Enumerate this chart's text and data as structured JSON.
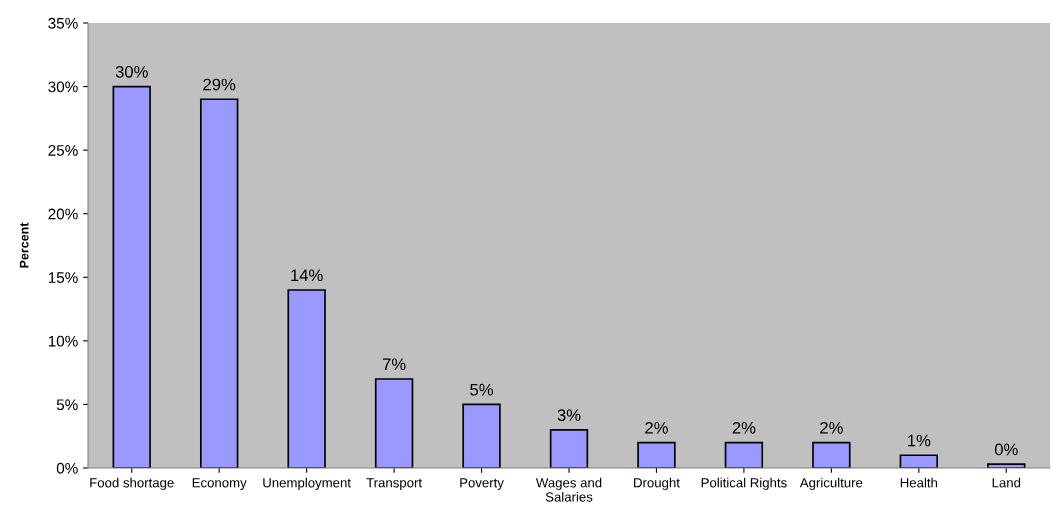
{
  "chart_data": {
    "type": "bar",
    "ylabel": "Percent",
    "categories": [
      "Food shortage",
      "Economy",
      "Unemployment",
      "Transport",
      "Poverty",
      "Wages and\nSalaries",
      "Drought",
      "Political Rights",
      "Agriculture",
      "Health",
      "Land"
    ],
    "values": [
      30,
      29,
      14,
      7,
      5,
      3,
      2,
      2,
      2,
      1,
      0.3
    ],
    "value_labels": [
      "30%",
      "29%",
      "14%",
      "7%",
      "5%",
      "3%",
      "2%",
      "2%",
      "2%",
      "1%",
      "0%"
    ],
    "color": "#9999ff",
    "ylim": [
      0,
      35
    ],
    "yticks": [
      {
        "value": 0,
        "label": "0%"
      },
      {
        "value": 5,
        "label": "5%"
      },
      {
        "value": 10,
        "label": "10%"
      },
      {
        "value": 15,
        "label": "15%"
      },
      {
        "value": 20,
        "label": "20%"
      },
      {
        "value": 25,
        "label": "25%"
      },
      {
        "value": 30,
        "label": "30%"
      },
      {
        "value": 35,
        "label": "35%"
      }
    ],
    "grid": false
  }
}
